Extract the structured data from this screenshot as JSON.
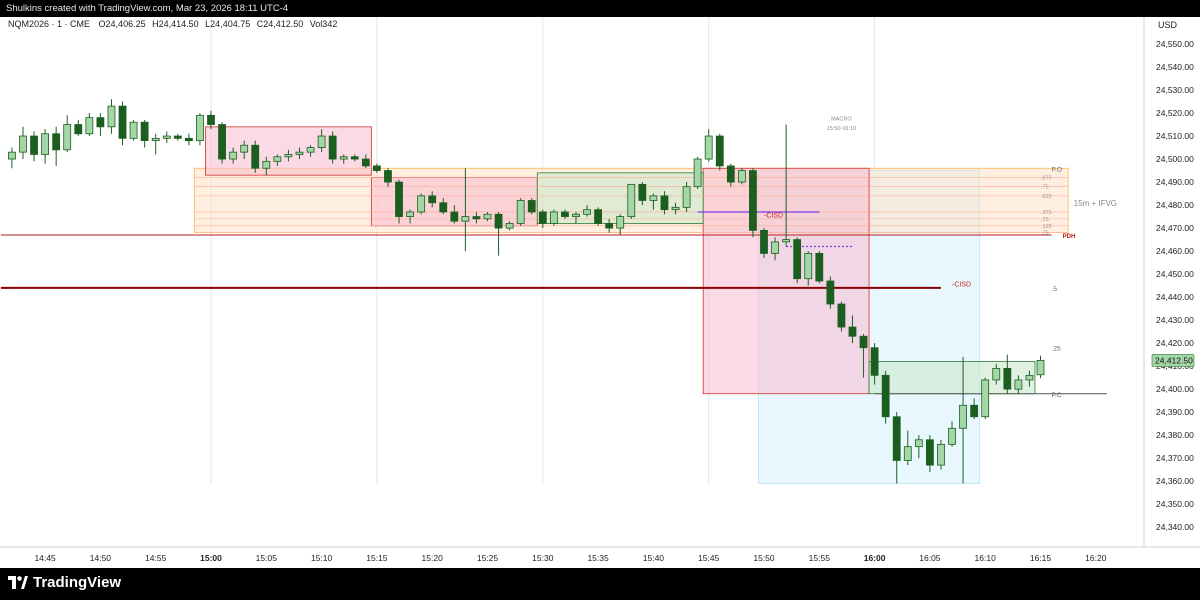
{
  "header": {
    "credit": "Shulkins created with TradingView.com, Mar 23, 2026 18:11 UTC-4"
  },
  "legend": {
    "symbol": "NQM2026 · 1 · CME",
    "open": "O24,406.25",
    "high": "H24,414.50",
    "low": "L24,404.75",
    "close": "C24,412.50",
    "volume": "Vol342"
  },
  "footer": {
    "brand": "TradingView",
    "brand_icon": "tradingview-logo-icon"
  },
  "colors": {
    "up_fill": "#a5d6a7",
    "down_fill": "#1b5e20",
    "candle_border": "#1b5e20",
    "red_zone": "#f8bbd0",
    "orange_zone": "#ffe0c2",
    "green_zone": "#c8e6c9",
    "blue_zone": "#e1f5fe",
    "pdh": "#b71c1c",
    "purple": "#7c3aed",
    "price_tag": "#a5d6a7"
  },
  "chart_data": {
    "type": "candlestick",
    "currency": "USD",
    "price_axis": {
      "range": [
        24333,
        24564
      ],
      "ticks": [
        "24,550.00",
        "24,540.00",
        "24,530.00",
        "24,520.00",
        "24,510.00",
        "24,500.00",
        "24,490.00",
        "24,480.00",
        "24,470.00",
        "24,460.00",
        "24,450.00",
        "24,440.00",
        "24,430.00",
        "24,420.00",
        "24,410.00",
        "24,400.00",
        "24,390.00",
        "24,380.00",
        "24,370.00",
        "24,360.00",
        "24,350.00",
        "24,340.00"
      ],
      "tick_values": [
        24550,
        24540,
        24530,
        24520,
        24510,
        24500,
        24490,
        24480,
        24470,
        24460,
        24450,
        24440,
        24430,
        24420,
        24410,
        24400,
        24390,
        24380,
        24370,
        24360,
        24350,
        24340
      ],
      "last_price": "24,412.50",
      "last_price_value": 24412.5
    },
    "time_axis": {
      "labels": [
        "14:45",
        "14:50",
        "14:55",
        "15:00",
        "15:05",
        "15:10",
        "15:15",
        "15:20",
        "15:25",
        "15:30",
        "15:35",
        "15:40",
        "15:45",
        "15:50",
        "15:55",
        "16:00",
        "16:05",
        "16:10",
        "16:15",
        "16:20"
      ],
      "label_minutes": [
        -15,
        -10,
        -5,
        0,
        5,
        10,
        15,
        20,
        25,
        30,
        35,
        40,
        45,
        50,
        55,
        60,
        65,
        70,
        75,
        80
      ],
      "bold": [
        "15:00",
        "16:00"
      ],
      "vertical_lines_at": [
        0,
        15,
        30,
        45,
        60
      ]
    },
    "candles": [
      {
        "t": -18,
        "o": 24500,
        "h": 24505,
        "l": 24496,
        "c": 24503
      },
      {
        "t": -17,
        "o": 24503,
        "h": 24514,
        "l": 24500,
        "c": 24510
      },
      {
        "t": -16,
        "o": 24510,
        "h": 24512,
        "l": 24499,
        "c": 24502
      },
      {
        "t": -15,
        "o": 24502,
        "h": 24513,
        "l": 24498,
        "c": 24511
      },
      {
        "t": -14,
        "o": 24511,
        "h": 24514,
        "l": 24497,
        "c": 24504
      },
      {
        "t": -13,
        "o": 24504,
        "h": 24519,
        "l": 24503,
        "c": 24515
      },
      {
        "t": -12,
        "o": 24515,
        "h": 24517,
        "l": 24510,
        "c": 24511
      },
      {
        "t": -11,
        "o": 24511,
        "h": 24520,
        "l": 24510,
        "c": 24518
      },
      {
        "t": -10,
        "o": 24518,
        "h": 24520,
        "l": 24510,
        "c": 24514
      },
      {
        "t": -9,
        "o": 24514,
        "h": 24526,
        "l": 24511,
        "c": 24523
      },
      {
        "t": -8,
        "o": 24523,
        "h": 24525,
        "l": 24506,
        "c": 24509
      },
      {
        "t": -7,
        "o": 24509,
        "h": 24517,
        "l": 24508,
        "c": 24516
      },
      {
        "t": -6,
        "o": 24516,
        "h": 24517,
        "l": 24505,
        "c": 24508
      },
      {
        "t": -5,
        "o": 24508,
        "h": 24511,
        "l": 24502,
        "c": 24509
      },
      {
        "t": -4,
        "o": 24509,
        "h": 24512,
        "l": 24507,
        "c": 24510
      },
      {
        "t": -3,
        "o": 24510,
        "h": 24511,
        "l": 24508,
        "c": 24509
      },
      {
        "t": -2,
        "o": 24509,
        "h": 24511,
        "l": 24506,
        "c": 24508
      },
      {
        "t": -1,
        "o": 24508,
        "h": 24520,
        "l": 24506,
        "c": 24519
      },
      {
        "t": 0,
        "o": 24519,
        "h": 24521,
        "l": 24513,
        "c": 24515
      },
      {
        "t": 1,
        "o": 24515,
        "h": 24516,
        "l": 24498,
        "c": 24500
      },
      {
        "t": 2,
        "o": 24500,
        "h": 24505,
        "l": 24498,
        "c": 24503
      },
      {
        "t": 3,
        "o": 24503,
        "h": 24508,
        "l": 24500,
        "c": 24506
      },
      {
        "t": 4,
        "o": 24506,
        "h": 24508,
        "l": 24494,
        "c": 24496
      },
      {
        "t": 5,
        "o": 24496,
        "h": 24501,
        "l": 24493,
        "c": 24499
      },
      {
        "t": 6,
        "o": 24499,
        "h": 24502,
        "l": 24497,
        "c": 24501
      },
      {
        "t": 7,
        "o": 24501,
        "h": 24504,
        "l": 24499,
        "c": 24502
      },
      {
        "t": 8,
        "o": 24502,
        "h": 24505,
        "l": 24500,
        "c": 24503
      },
      {
        "t": 9,
        "o": 24503,
        "h": 24506,
        "l": 24501,
        "c": 24505
      },
      {
        "t": 10,
        "o": 24505,
        "h": 24513,
        "l": 24503,
        "c": 24510
      },
      {
        "t": 11,
        "o": 24510,
        "h": 24512,
        "l": 24498,
        "c": 24500
      },
      {
        "t": 12,
        "o": 24500,
        "h": 24502,
        "l": 24498,
        "c": 24501
      },
      {
        "t": 13,
        "o": 24501,
        "h": 24502,
        "l": 24499,
        "c": 24500
      },
      {
        "t": 14,
        "o": 24500,
        "h": 24502,
        "l": 24496,
        "c": 24497
      },
      {
        "t": 15,
        "o": 24497,
        "h": 24498,
        "l": 24494,
        "c": 24495
      },
      {
        "t": 16,
        "o": 24495,
        "h": 24496,
        "l": 24488,
        "c": 24490
      },
      {
        "t": 17,
        "o": 24490,
        "h": 24491,
        "l": 24472,
        "c": 24475
      },
      {
        "t": 18,
        "o": 24475,
        "h": 24478,
        "l": 24472,
        "c": 24477
      },
      {
        "t": 19,
        "o": 24477,
        "h": 24485,
        "l": 24476,
        "c": 24484
      },
      {
        "t": 20,
        "o": 24484,
        "h": 24486,
        "l": 24479,
        "c": 24481
      },
      {
        "t": 21,
        "o": 24481,
        "h": 24483,
        "l": 24476,
        "c": 24477
      },
      {
        "t": 22,
        "o": 24477,
        "h": 24480,
        "l": 24472,
        "c": 24473
      },
      {
        "t": 23,
        "o": 24473,
        "h": 24496,
        "l": 24460,
        "c": 24475
      },
      {
        "t": 24,
        "o": 24475,
        "h": 24477,
        "l": 24472,
        "c": 24474
      },
      {
        "t": 25,
        "o": 24474,
        "h": 24477,
        "l": 24473,
        "c": 24476
      },
      {
        "t": 26,
        "o": 24476,
        "h": 24477,
        "l": 24458,
        "c": 24470
      },
      {
        "t": 27,
        "o": 24470,
        "h": 24473,
        "l": 24469,
        "c": 24472
      },
      {
        "t": 28,
        "o": 24472,
        "h": 24483,
        "l": 24471,
        "c": 24482
      },
      {
        "t": 29,
        "o": 24482,
        "h": 24483,
        "l": 24476,
        "c": 24477
      },
      {
        "t": 30,
        "o": 24477,
        "h": 24478,
        "l": 24470,
        "c": 24472
      },
      {
        "t": 31,
        "o": 24472,
        "h": 24478,
        "l": 24471,
        "c": 24477
      },
      {
        "t": 32,
        "o": 24477,
        "h": 24478,
        "l": 24474,
        "c": 24475
      },
      {
        "t": 33,
        "o": 24475,
        "h": 24477,
        "l": 24472,
        "c": 24476
      },
      {
        "t": 34,
        "o": 24476,
        "h": 24480,
        "l": 24475,
        "c": 24478
      },
      {
        "t": 35,
        "o": 24478,
        "h": 24479,
        "l": 24471,
        "c": 24472
      },
      {
        "t": 36,
        "o": 24472,
        "h": 24474,
        "l": 24468,
        "c": 24470
      },
      {
        "t": 37,
        "o": 24470,
        "h": 24476,
        "l": 24467,
        "c": 24475
      },
      {
        "t": 38,
        "o": 24475,
        "h": 24489,
        "l": 24474,
        "c": 24489
      },
      {
        "t": 39,
        "o": 24489,
        "h": 24490,
        "l": 24480,
        "c": 24482
      },
      {
        "t": 40,
        "o": 24482,
        "h": 24485,
        "l": 24478,
        "c": 24484
      },
      {
        "t": 41,
        "o": 24484,
        "h": 24486,
        "l": 24476,
        "c": 24478
      },
      {
        "t": 42,
        "o": 24478,
        "h": 24481,
        "l": 24476,
        "c": 24479
      },
      {
        "t": 43,
        "o": 24479,
        "h": 24490,
        "l": 24477,
        "c": 24488
      },
      {
        "t": 44,
        "o": 24488,
        "h": 24501,
        "l": 24487,
        "c": 24500
      },
      {
        "t": 45,
        "o": 24500,
        "h": 24513,
        "l": 24499,
        "c": 24510
      },
      {
        "t": 46,
        "o": 24510,
        "h": 24511,
        "l": 24495,
        "c": 24497
      },
      {
        "t": 47,
        "o": 24497,
        "h": 24498,
        "l": 24488,
        "c": 24490
      },
      {
        "t": 48,
        "o": 24490,
        "h": 24496,
        "l": 24489,
        "c": 24495
      },
      {
        "t": 49,
        "o": 24495,
        "h": 24496,
        "l": 24466,
        "c": 24469
      },
      {
        "t": 50,
        "o": 24469,
        "h": 24470,
        "l": 24457,
        "c": 24459
      },
      {
        "t": 51,
        "o": 24459,
        "h": 24466,
        "l": 24456,
        "c": 24464
      },
      {
        "t": 52,
        "o": 24464,
        "h": 24515,
        "l": 24462,
        "c": 24465
      },
      {
        "t": 53,
        "o": 24465,
        "h": 24466,
        "l": 24446,
        "c": 24448
      },
      {
        "t": 54,
        "o": 24448,
        "h": 24460,
        "l": 24445,
        "c": 24459
      },
      {
        "t": 55,
        "o": 24459,
        "h": 24460,
        "l": 24446,
        "c": 24447
      },
      {
        "t": 56,
        "o": 24447,
        "h": 24449,
        "l": 24435,
        "c": 24437
      },
      {
        "t": 57,
        "o": 24437,
        "h": 24438,
        "l": 24425,
        "c": 24427
      },
      {
        "t": 58,
        "o": 24427,
        "h": 24432,
        "l": 24420,
        "c": 24423
      },
      {
        "t": 59,
        "o": 24423,
        "h": 24424,
        "l": 24405,
        "c": 24418
      },
      {
        "t": 60,
        "o": 24418,
        "h": 24420,
        "l": 24402,
        "c": 24406
      },
      {
        "t": 61,
        "o": 24406,
        "h": 24408,
        "l": 24385,
        "c": 24388
      },
      {
        "t": 62,
        "o": 24388,
        "h": 24390,
        "l": 24359,
        "c": 24369
      },
      {
        "t": 63,
        "o": 24369,
        "h": 24382,
        "l": 24367,
        "c": 24375
      },
      {
        "t": 64,
        "o": 24375,
        "h": 24380,
        "l": 24370,
        "c": 24378
      },
      {
        "t": 65,
        "o": 24378,
        "h": 24380,
        "l": 24364,
        "c": 24367
      },
      {
        "t": 66,
        "o": 24367,
        "h": 24378,
        "l": 24365,
        "c": 24376
      },
      {
        "t": 67,
        "o": 24376,
        "h": 24386,
        "l": 24375,
        "c": 24383
      },
      {
        "t": 68,
        "o": 24383,
        "h": 24414,
        "l": 24359,
        "c": 24393
      },
      {
        "t": 69,
        "o": 24393,
        "h": 24396,
        "l": 24387,
        "c": 24388
      },
      {
        "t": 70,
        "o": 24388,
        "h": 24405,
        "l": 24387,
        "c": 24404
      },
      {
        "t": 71,
        "o": 24404,
        "h": 24411,
        "l": 24402,
        "c": 24409
      },
      {
        "t": 72,
        "o": 24409,
        "h": 24415,
        "l": 24398,
        "c": 24400
      },
      {
        "t": 73,
        "o": 24400,
        "h": 24406,
        "l": 24398,
        "c": 24404
      },
      {
        "t": 74,
        "o": 24404,
        "h": 24408,
        "l": 24401,
        "c": 24406
      },
      {
        "t": 75,
        "o": 24406.25,
        "h": 24414.5,
        "l": 24404.75,
        "c": 24412.5
      }
    ],
    "zones": [
      {
        "kind": "red_zone",
        "t1": 0,
        "t2": 14,
        "top": 24514,
        "bottom": 24493
      },
      {
        "kind": "red_zone",
        "t1": 15,
        "t2": 29,
        "top": 24492,
        "bottom": 24471
      },
      {
        "kind": "green_zone",
        "t1": 30,
        "t2": 44,
        "top": 24494,
        "bottom": 24472
      },
      {
        "kind": "orange_zone",
        "t1": -1,
        "t2": 77,
        "top": 24496,
        "bottom": 24468
      },
      {
        "kind": "red_zone",
        "t1": 45,
        "t2": 59,
        "top": 24496,
        "bottom": 24398
      },
      {
        "kind": "blue_zone",
        "t1": 50,
        "t2": 69,
        "top": 24495,
        "bottom": 24359
      },
      {
        "kind": "green_zone",
        "t1": 60,
        "t2": 74,
        "top": 24412,
        "bottom": 24398
      }
    ],
    "levels": [
      {
        "name": "pdh-line",
        "price": 24467,
        "t1": -19,
        "t2": 76,
        "color": "#b71c1c",
        "width": 1
      },
      {
        "name": "cisd-line",
        "price": 24444,
        "t1": -19,
        "t2": 66,
        "color": "#8b0000",
        "width": 2
      },
      {
        "name": "cisd-small-line",
        "price": 24477,
        "t1": 44,
        "t2": 55,
        "color": "#7c3aed",
        "width": 1
      },
      {
        "name": "pc-line",
        "price": 24398,
        "t1": 60,
        "t2": 81,
        "color": "#555",
        "width": 1
      }
    ],
    "annotations": [
      {
        "text": "MACRO",
        "t": 57,
        "price": 24518
      },
      {
        "text": "15:50-16:10",
        "t": 57,
        "price": 24514
      },
      {
        "text": "15m + IFVG",
        "t": 78,
        "price": 24481
      },
      {
        "text": "PDH",
        "t": 77,
        "price": 24467
      },
      {
        "text": "-CISD",
        "t": 67,
        "price": 24446
      },
      {
        "text": "-CISD",
        "t": 50,
        "price": 24476
      },
      {
        "text": ".5",
        "t": 76,
        "price": 24444
      },
      {
        "text": ".25",
        "t": 76,
        "price": 24418
      },
      {
        "text": "P.C",
        "t": 76,
        "price": 24398
      },
      {
        "text": "P.O",
        "t": 76,
        "price": 24496
      }
    ],
    "fib_labels": [
      ".875",
      ".75",
      ".625",
      ".375",
      ".25",
      ".125",
      ".75"
    ],
    "fib_prices": [
      24492,
      24488,
      24484,
      24477,
      24474,
      24471,
      24468
    ]
  }
}
